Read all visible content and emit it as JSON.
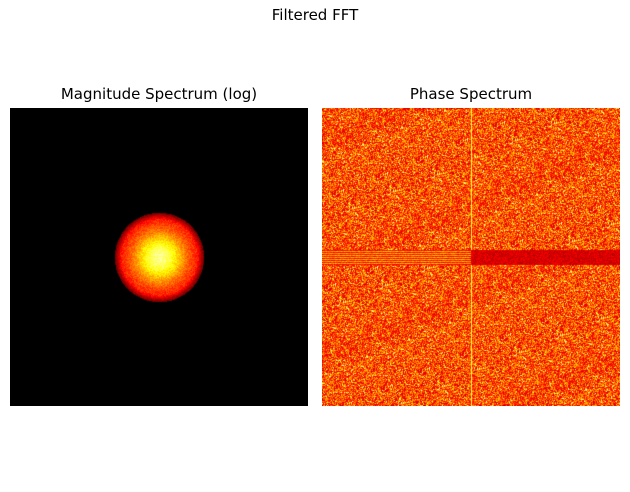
{
  "figure": {
    "suptitle": "Filtered FFT"
  },
  "chart_data": [
    {
      "type": "heatmap",
      "title": "Magnitude Spectrum (log)",
      "colormap": "hot",
      "axes_visible": false,
      "background_color": "#000000",
      "description_of_values": "log magnitude; zero outside circular low-pass region, bright centered blob",
      "filter": {
        "shape": "circular low-pass",
        "center": "image center",
        "radius_fraction_of_width": 0.15
      }
    },
    {
      "type": "heatmap",
      "title": "Phase Spectrum",
      "colormap": "hot",
      "axes_visible": false,
      "value_range": [
        -3.14159,
        3.14159
      ],
      "description_of_values": "random-looking phase noise with bright cross-shaped artifacts along center row and column"
    }
  ],
  "colors": {
    "hot_dark": "#000000",
    "hot_red": "#c81a00",
    "hot_orange": "#ff7a00",
    "hot_yellow": "#ffe066",
    "hot_white": "#ffffff"
  }
}
